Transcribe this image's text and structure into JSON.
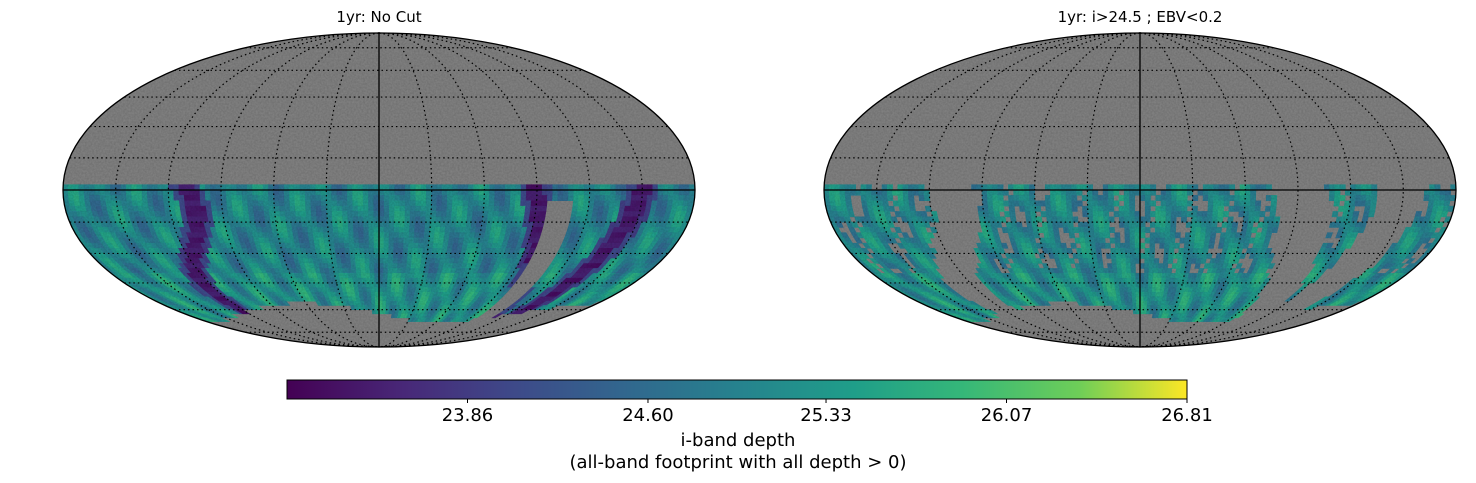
{
  "chart_data": [
    {
      "type": "heatmap",
      "projection": "mollweide",
      "title": "1yr: No Cut",
      "background_color": "#808080",
      "grid": true,
      "footprint": "southern-sky band (roughly +5 to -70 deg dec) with dark low-depth streaks along the galactic plane",
      "colormap": "viridis"
    },
    {
      "type": "heatmap",
      "projection": "mollweide",
      "title": "1yr: i>24.5 ; EBV<0.2",
      "background_color": "#808080",
      "grid": true,
      "footprint": "same band with the galactic-plane regions removed",
      "colormap": "viridis"
    }
  ],
  "colorbar": {
    "colormap": "viridis",
    "range": [
      23.12,
      26.81
    ],
    "ticks": [
      "23.86",
      "24.60",
      "25.33",
      "26.07",
      "26.81"
    ],
    "tick_values": [
      23.86,
      24.6,
      25.33,
      26.07,
      26.81
    ],
    "label_line1": "i-band depth",
    "label_line2": "(all-band footprint with all depth > 0)"
  },
  "colors": {
    "masked": "#808080",
    "viridis_low": "#440154",
    "viridis_mid": "#21918c",
    "viridis_high": "#fde725"
  }
}
